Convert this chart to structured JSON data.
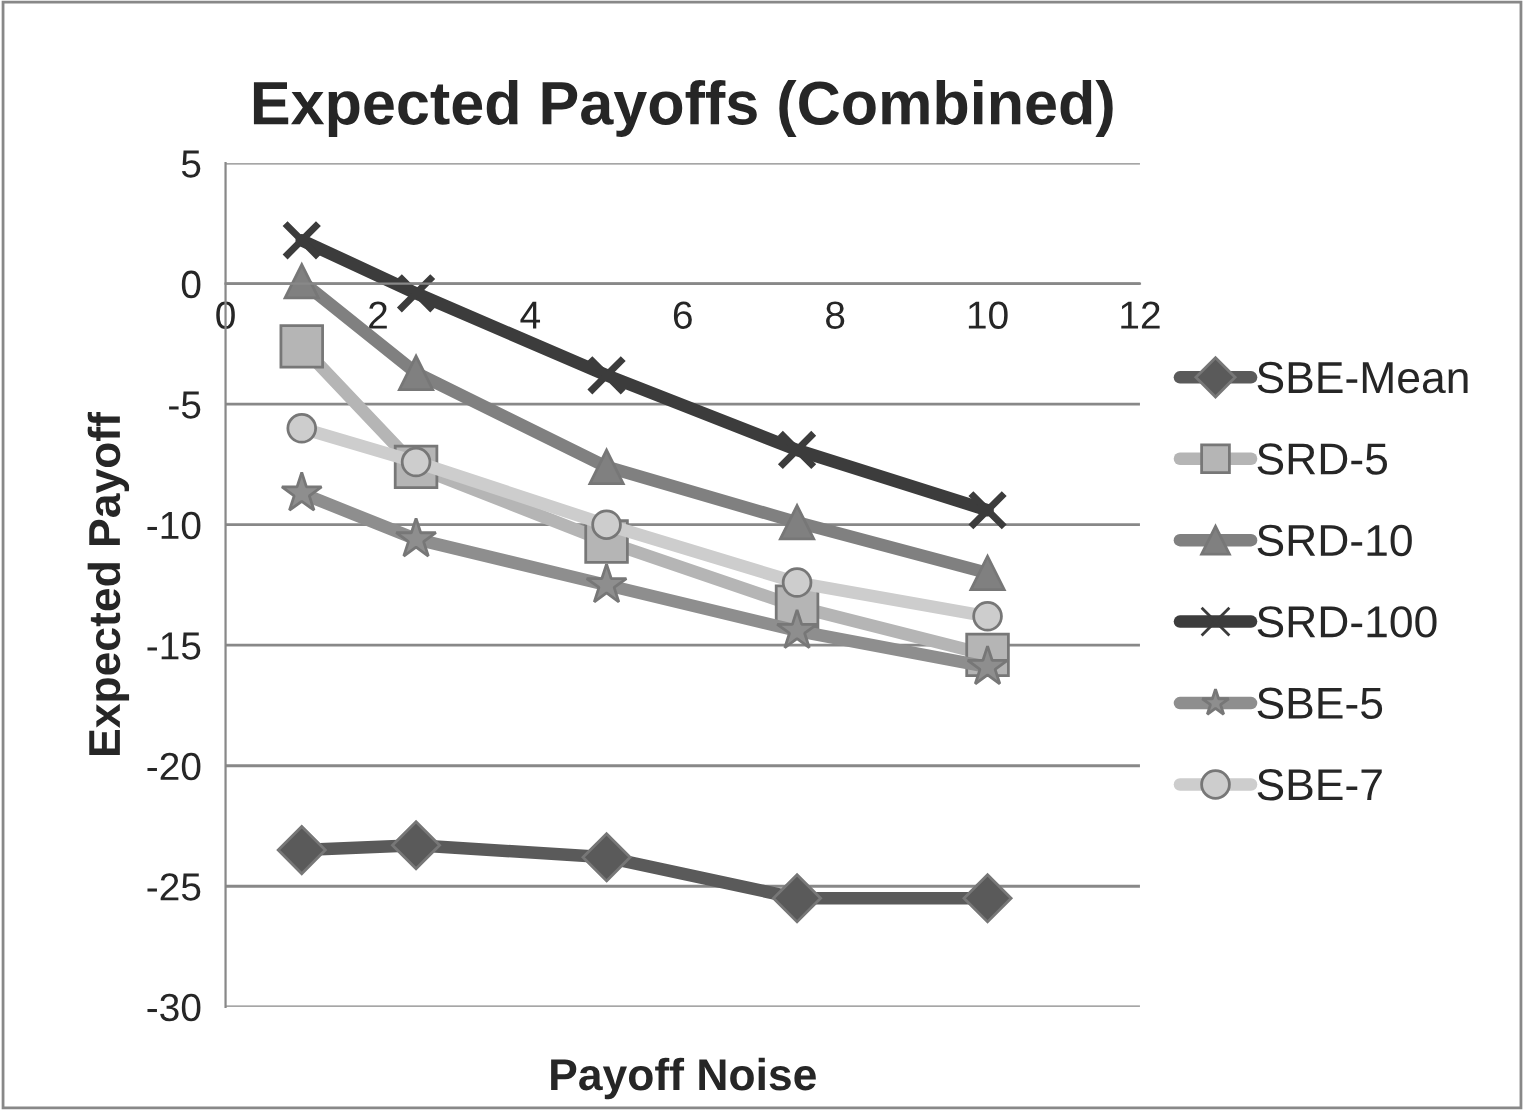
{
  "chart_data": {
    "type": "line",
    "title": "Expected Payoffs (Combined)",
    "xlabel": "Payoff Noise",
    "ylabel": "Expected Payoff",
    "x": [
      1,
      2.5,
      5,
      7.5,
      10
    ],
    "series": [
      {
        "name": "SBE-Mean",
        "color": "#5a5a5a",
        "marker": "diamond",
        "values": [
          -23.5,
          -23.3,
          -23.8,
          -25.5,
          -25.5
        ]
      },
      {
        "name": "SRD-5",
        "color": "#b5b5b5",
        "marker": "square",
        "values": [
          -2.6,
          -7.6,
          -10.7,
          -13.4,
          -15.4
        ]
      },
      {
        "name": "SRD-10",
        "color": "#808080",
        "marker": "triangle",
        "values": [
          0.1,
          -3.7,
          -7.6,
          -9.9,
          -12.0
        ]
      },
      {
        "name": "SRD-100",
        "color": "#3c3c3c",
        "marker": "cross",
        "values": [
          1.8,
          -0.4,
          -3.8,
          -6.9,
          -9.4
        ]
      },
      {
        "name": "SBE-5",
        "color": "#8e8e8e",
        "marker": "star",
        "values": [
          -8.7,
          -10.6,
          -12.5,
          -14.4,
          -15.9
        ]
      },
      {
        "name": "SBE-7",
        "color": "#cdcdcd",
        "marker": "circle",
        "values": [
          -6.0,
          -7.4,
          -10.0,
          -12.4,
          -13.8
        ]
      }
    ],
    "xlim": [
      0,
      12
    ],
    "xticks": [
      0,
      2,
      4,
      6,
      8,
      10,
      12
    ],
    "ylim": [
      -30,
      5
    ],
    "yticks": [
      -30,
      -25,
      -20,
      -15,
      -10,
      -5,
      0,
      5
    ],
    "grid": "y",
    "legend": "right",
    "line_style": "solid"
  }
}
